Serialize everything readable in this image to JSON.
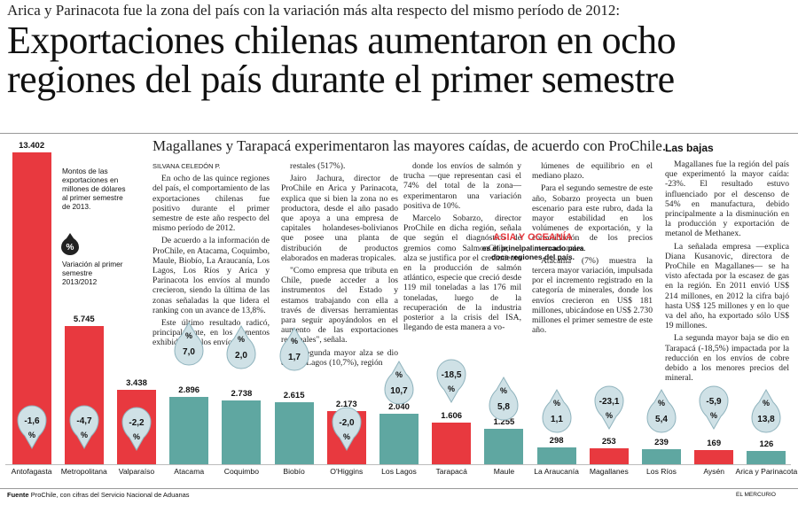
{
  "kicker": "Arica y Parinacota fue la zona del país con la variación más alta respecto del mismo período de 2012:",
  "headline": {
    "line1": "Exportaciones chilenas aumentaron en ocho",
    "line2": "regiones del país durante el primer semestre"
  },
  "subhead": "Magallanes y Tarapacá experimentaron las mayores caídas, de acuerdo con ProChile.",
  "byline": "Silvana Celedón P.",
  "col1": [
    "En ocho de las quince regiones del país, el comportamiento de las exportaciones chilenas fue positivo durante el primer semestre de este año respecto del mismo período de 2012.",
    "De acuerdo a la información de ProChile, en Atacama, Coquimbo, Maule, Biobío, La Araucanía, Los Lagos, Los Ríos y Arica y Parinacota los envíos al mundo crecieron, siendo la última de las zonas señaladas la que lidera el ranking con un avance de 13,8%.",
    "Este último resultado radicó, principalmente, en los aumentos exhibidos por los envíos fo-"
  ],
  "col2": [
    "restales (517%).",
    "Jairo Jachura, director de ProChile en Arica y Parinacota, explica que si bien la zona no es productora, desde el año pasado que apoya a una empresa de capitales holandeses-bolivianos que posee una planta de distribución de productos elaborados en maderas tropicales.",
    "\"Como empresa que tributa en Chile, puede acceder a los instrumentos del Estado y estamos trabajando con ella a través de diversas herramientas para seguir apoyándolos en el aumento de las exportaciones regionales\", señala.",
    "La segunda mayor alza se dio en Los Lagos (10,7%), región"
  ],
  "col3": [
    "donde los envíos de salmón y trucha —que representan casi el 74% del total de la zona— experimentaron una variación positiva de 10%.",
    "Marcelo Sobarzo, director ProChile en dicha región, señala que según el diagnóstico de gremios como SalmonChile, el alza se justifica por el crecimiento en la producción de salmón atlántico, especie que creció desde 119 mil toneladas a las 176 mil toneladas, luego de la recuperación de la industria posterior a la crisis del ISA, llegando de esta manera a vo-"
  ],
  "col4": [
    "lúmenes de equilibrio en el mediano plazo.",
    "Para el segundo semestre de este año, Sobarzo proyecta un buen escenario para este rubro, dada la mayor estabilidad en los volúmenes de exportación, y la consolidación de los precios internacionales.",
    "Atacama (7%) muestra la tercera mayor variación, impulsada por el incremento registrado en la categoría de minerales, donde los envíos crecieron en US$ 181 millones, ubicándose en US$ 2.730 millones el primer semestre de este año."
  ],
  "asia_box": {
    "title": "ASIA Y OCEANÍA",
    "subtitle": "es el principal mercado para doce regiones del país."
  },
  "las_bajas": {
    "title": "Las bajas",
    "paragraphs": [
      "Magallanes fue la región del país que experimentó la mayor caída: -23%. El resultado estuvo influenciado por el descenso de 54% en manufactura, debido principalmente a la disminución en la producción y exportación de metanol de Methanex.",
      "La señalada empresa —explica Diana Kusanovic, directora de ProChile en Magallanes— se ha visto afectada por la escasez de gas en la región. En 2011 envió US$ 214 millones, en 2012 la cifra bajó hasta US$ 125 millones y en lo que va del año, ha exportado sólo US$ 19 millones.",
      "La segunda mayor baja se dio en Tarapacá (-18,5%) impactada por la reducción en los envíos de cobre debido a los menores precios del mineral."
    ]
  },
  "legend": {
    "amount_text": "Montos de las exportaciones en millones de dólares al primer semestre de 2013.",
    "variation_text": "Variación al primer semestre 2013/2012",
    "icon": "percent-drop-icon"
  },
  "colors": {
    "increase": "#5fa7a1",
    "decrease": "#e8393f",
    "drop_fill": "#cfe1e6",
    "drop_stroke": "#8fb3bd"
  },
  "chart_data": {
    "type": "bar",
    "ylabel": "",
    "categories": [
      "Antofagasta",
      "Metropolitana",
      "Valparaíso",
      "Atacama",
      "Coquimbo",
      "Biobío",
      "O'Higgins",
      "Los Lagos",
      "Tarapacá",
      "Maule",
      "La Araucanía",
      "Magallanes",
      "Los Ríos",
      "Aysén",
      "Arica y Parinacota"
    ],
    "values": [
      13402,
      5745,
      3438,
      2896,
      2738,
      2615,
      2173,
      2040,
      1606,
      1255,
      298,
      253,
      239,
      169,
      126
    ],
    "value_labels": [
      "13.402",
      "5.745",
      "3.438",
      "2.896",
      "2.738",
      "2.615",
      "2.173",
      "2.040",
      "1.606",
      "1.255",
      "298",
      "253",
      "239",
      "169",
      "126"
    ],
    "variation": [
      -1.6,
      -4.7,
      -2.2,
      7.0,
      2.0,
      1.7,
      -2.0,
      10.7,
      -18.5,
      5.8,
      1.1,
      -23.1,
      5.4,
      -5.9,
      13.8
    ],
    "variation_labels": [
      "-1,6",
      "-4,7",
      "-2,2",
      "7,0",
      "2,0",
      "1,7",
      "-2,0",
      "10,7",
      "-18,5",
      "5,8",
      "1,1",
      "-23,1",
      "5,4",
      "-5,9",
      "13,8"
    ],
    "percent_symbol": "%"
  },
  "footer": {
    "source_label": "Fuente",
    "source_text": "ProChile, con cifras del Servicio Nacional de Aduanas",
    "brand": "EL MERCURIO"
  }
}
